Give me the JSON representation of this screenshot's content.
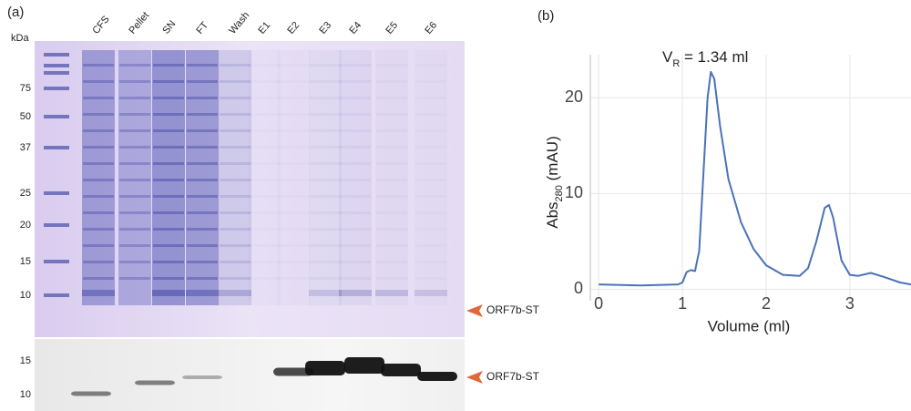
{
  "panel_a": {
    "label": "(a)",
    "unit": "kDa",
    "lanes": [
      "CFS",
      "Pellet",
      "SN",
      "FT",
      "Wash",
      "E1",
      "E2",
      "E3",
      "E4",
      "E5",
      "E6"
    ],
    "markers": [
      75,
      50,
      37,
      25,
      20,
      15,
      10
    ],
    "blot_markers": [
      15,
      10
    ],
    "band_label": "ORF7b-ST",
    "blot_band_label": "ORF7b-ST"
  },
  "chart_data": {
    "type": "line",
    "panel_label": "(b)",
    "annotation": {
      "main": "V",
      "sub": "R",
      "rest": " = 1.34 ml"
    },
    "y_label": {
      "main": "Abs",
      "sub": "280",
      "rest": " (mAU)"
    },
    "x_label": "Volume (ml)",
    "color": "#4a72b8",
    "x": [
      0,
      0.5,
      0.95,
      1.0,
      1.05,
      1.1,
      1.15,
      1.2,
      1.25,
      1.3,
      1.34,
      1.38,
      1.45,
      1.55,
      1.7,
      1.85,
      2.0,
      2.2,
      2.4,
      2.5,
      2.6,
      2.7,
      2.75,
      2.8,
      2.9,
      3.0,
      3.1,
      3.25,
      3.4,
      3.6,
      3.73
    ],
    "y": [
      0.5,
      0.4,
      0.5,
      0.7,
      1.8,
      2.0,
      1.9,
      4.0,
      12,
      20,
      22.7,
      22,
      17,
      11.5,
      7,
      4.2,
      2.5,
      1.5,
      1.4,
      2.2,
      5,
      8.5,
      8.8,
      7.5,
      3,
      1.5,
      1.4,
      1.7,
      1.3,
      0.7,
      0.5
    ],
    "xlim": [
      -0.1,
      3.73
    ],
    "ylim": [
      -1.2,
      24.5
    ],
    "xticks": [
      0,
      1,
      2,
      3
    ],
    "yticks": [
      0,
      10,
      20
    ],
    "grid": true
  }
}
